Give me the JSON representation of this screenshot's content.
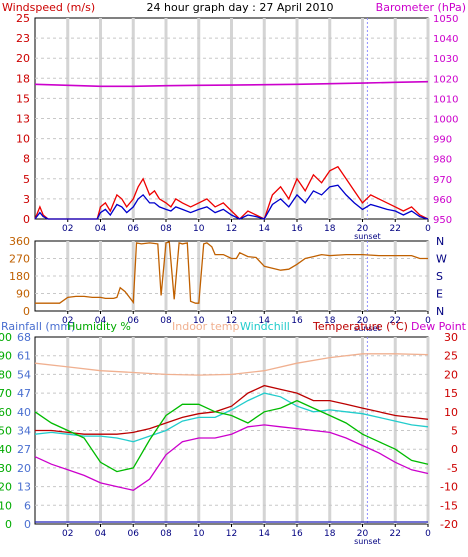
{
  "chart_data": [
    {
      "type": "line",
      "panel": "wind",
      "title": "24 hour graph day : 27 April 2010",
      "left_axis_label": "Windspeed (m/s)",
      "right_axis_label": "Barometer (hPa)",
      "left_ticks": [
        0,
        3,
        5,
        8,
        10,
        13,
        15,
        18,
        20,
        23,
        25
      ],
      "right_ticks": [
        950,
        960,
        970,
        980,
        990,
        1000,
        1010,
        1020,
        1030,
        1040,
        1050
      ],
      "left_range": [
        0,
        25
      ],
      "right_range": [
        950,
        1050
      ],
      "x_ticks": [
        "02",
        "04",
        "06",
        "08",
        "10",
        "12",
        "14",
        "16",
        "18",
        "20",
        "22",
        "0"
      ],
      "x_marker_label": "sunset",
      "x_marker_hour": 20.3,
      "grid": true,
      "series": [
        {
          "name": "gust",
          "axis": "left",
          "color": "#ee0000",
          "x": [
            0,
            0.3,
            0.5,
            0.8,
            1,
            2,
            3,
            3.8,
            4,
            4.3,
            4.6,
            5,
            5.3,
            5.6,
            6,
            6.3,
            6.6,
            7,
            7.3,
            7.6,
            8,
            8.3,
            8.6,
            9,
            9.5,
            10,
            10.5,
            11,
            11.5,
            12,
            12.5,
            13,
            13.5,
            14,
            14.5,
            15,
            15.5,
            16,
            16.5,
            17,
            17.5,
            18,
            18.5,
            19,
            19.5,
            20,
            20.5,
            21,
            21.5,
            22,
            22.5,
            23,
            23.5,
            24
          ],
          "y": [
            0,
            1.5,
            0.5,
            0,
            0,
            0,
            0,
            0,
            1.5,
            2,
            1,
            3,
            2.5,
            1.5,
            2.5,
            4,
            5,
            3,
            3.5,
            2.5,
            2,
            1.5,
            2.5,
            2,
            1.5,
            2,
            2.5,
            1.5,
            2,
            1,
            0,
            1,
            0.5,
            0,
            3,
            4,
            2.5,
            5,
            3.5,
            5.5,
            4.5,
            6,
            6.5,
            5,
            3.5,
            2,
            3,
            2.5,
            2,
            1.5,
            1,
            1.5,
            0.5,
            0
          ]
        },
        {
          "name": "wind",
          "axis": "left",
          "color": "#0000cc",
          "x": [
            0,
            0.3,
            0.5,
            0.8,
            1,
            2,
            3,
            3.8,
            4,
            4.3,
            4.6,
            5,
            5.3,
            5.6,
            6,
            6.3,
            6.6,
            7,
            7.3,
            7.6,
            8,
            8.3,
            8.6,
            9,
            9.5,
            10,
            10.5,
            11,
            11.5,
            12,
            12.5,
            13,
            13.5,
            14,
            14.5,
            15,
            15.5,
            16,
            16.5,
            17,
            17.5,
            18,
            18.5,
            19,
            19.5,
            20,
            20.5,
            21,
            21.5,
            22,
            22.5,
            23,
            23.5,
            24
          ],
          "y": [
            0,
            0.8,
            0.3,
            0,
            0,
            0,
            0,
            0,
            0.8,
            1.2,
            0.5,
            1.8,
            1.5,
            0.8,
            1.5,
            2.5,
            3,
            2,
            2,
            1.5,
            1.2,
            1,
            1.5,
            1.2,
            0.8,
            1.2,
            1.5,
            0.8,
            1.2,
            0.5,
            0,
            0.5,
            0.3,
            0,
            1.8,
            2.5,
            1.5,
            3,
            2,
            3.5,
            3,
            4,
            4.2,
            3,
            2,
            1.2,
            1.8,
            1.5,
            1.2,
            1,
            0.5,
            1,
            0.3,
            0
          ]
        },
        {
          "name": "barometer",
          "axis": "right",
          "color": "#cc00cc",
          "x": [
            0,
            2,
            4,
            6,
            8,
            10,
            12,
            14,
            16,
            18,
            20,
            22,
            24
          ],
          "y": [
            1017,
            1016.5,
            1016,
            1016,
            1016.3,
            1016.5,
            1016.6,
            1016.8,
            1017,
            1017.3,
            1017.6,
            1018,
            1018.3
          ]
        }
      ]
    },
    {
      "type": "line",
      "panel": "direction",
      "left_ticks": [
        0,
        90,
        180,
        270,
        360
      ],
      "right_ticks": [
        "N",
        "E",
        "S",
        "W",
        "N"
      ],
      "left_range": [
        0,
        360
      ],
      "x_ticks": [
        "02",
        "04",
        "06",
        "08",
        "10",
        "12",
        "14",
        "16",
        "18",
        "20",
        "22",
        "0"
      ],
      "x_marker_label": "sunset",
      "x_marker_hour": 20.3,
      "series": [
        {
          "name": "direction",
          "axis": "left",
          "color": "#c06000",
          "x": [
            0,
            0.5,
            1,
            1.5,
            2,
            2.5,
            3,
            3.5,
            4,
            4.3,
            4.5,
            4.8,
            5,
            5.2,
            5.5,
            6,
            6.2,
            6.5,
            7,
            7.5,
            7.7,
            8,
            8.2,
            8.5,
            8.8,
            9,
            9.3,
            9.5,
            9.8,
            10,
            10.3,
            10.5,
            10.8,
            11,
            11.5,
            12,
            12.3,
            12.5,
            13,
            13.5,
            14,
            14.5,
            15,
            15.5,
            16,
            16.5,
            17,
            17.5,
            18,
            19,
            20,
            21,
            22,
            23,
            23.5,
            24
          ],
          "y": [
            40,
            40,
            40,
            40,
            70,
            75,
            75,
            70,
            70,
            65,
            65,
            65,
            70,
            120,
            100,
            45,
            350,
            345,
            350,
            345,
            80,
            350,
            355,
            60,
            350,
            345,
            350,
            50,
            40,
            40,
            345,
            350,
            330,
            290,
            290,
            270,
            270,
            300,
            280,
            275,
            230,
            220,
            210,
            215,
            240,
            270,
            280,
            290,
            285,
            290,
            290,
            285,
            285,
            285,
            270,
            270
          ]
        }
      ]
    },
    {
      "type": "line",
      "panel": "temperature",
      "left_axis_label": "Rainfall (mm)",
      "humidity_label": "Humidity %",
      "indoor_label": "Indoor temp",
      "windchill_label": "Windchill",
      "right_axis_label": "Temperature (°C)",
      "dewpoint_label": "Dew Point",
      "left_ticks": [
        0,
        6,
        13,
        20,
        27,
        34,
        40,
        47,
        54,
        61,
        68
      ],
      "humidity_ticks": [
        0,
        10,
        20,
        30,
        40,
        50,
        60,
        70,
        80,
        90,
        100
      ],
      "right_ticks": [
        -20,
        -15,
        -10,
        -5,
        0,
        5,
        10,
        15,
        20,
        25,
        30
      ],
      "right_range": [
        -20,
        30
      ],
      "x_ticks": [
        "02",
        "04",
        "06",
        "08",
        "10",
        "12",
        "14",
        "16",
        "18",
        "20",
        "22",
        "0"
      ],
      "x_marker_label": "sunset",
      "x_marker_hour": 20.3,
      "series": [
        {
          "name": "indoor",
          "axis": "right",
          "color": "#f0b090",
          "x": [
            0,
            2,
            4,
            6,
            8,
            10,
            12,
            14,
            16,
            18,
            20,
            22,
            24
          ],
          "y": [
            23,
            22,
            21,
            20.5,
            20,
            19.8,
            20,
            21,
            23,
            24.5,
            25.5,
            25.5,
            25.3
          ]
        },
        {
          "name": "temperature",
          "axis": "right",
          "color": "#bb0000",
          "x": [
            0,
            1,
            2,
            3,
            4,
            5,
            6,
            7,
            8,
            9,
            10,
            11,
            12,
            13,
            14,
            15,
            16,
            17,
            18,
            19,
            20,
            21,
            22,
            23,
            24
          ],
          "y": [
            5,
            5,
            4.5,
            4,
            4,
            4,
            4.5,
            5.5,
            7,
            8.5,
            9.5,
            10,
            11.5,
            15,
            17,
            16,
            15,
            13,
            13,
            12,
            11,
            10,
            9,
            8.5,
            8
          ]
        },
        {
          "name": "windchill",
          "axis": "right",
          "color": "#22cccc",
          "x": [
            0,
            1,
            2,
            3,
            4,
            5,
            6,
            7,
            8,
            9,
            10,
            11,
            12,
            13,
            14,
            15,
            16,
            17,
            18,
            19,
            20,
            21,
            22,
            23,
            24
          ],
          "y": [
            4,
            4.5,
            4,
            3.5,
            3.5,
            3,
            2,
            3.5,
            5,
            7.5,
            8.5,
            8.5,
            10.5,
            13,
            15,
            14,
            11.5,
            10,
            10.5,
            10,
            9.5,
            8.5,
            7.5,
            6.5,
            6
          ]
        },
        {
          "name": "humidity",
          "axis": "humidity",
          "color": "#00bb00",
          "x": [
            0,
            1,
            2,
            3,
            4,
            5,
            6,
            7,
            8,
            9,
            10,
            11,
            12,
            13,
            14,
            15,
            16,
            17,
            18,
            19,
            20,
            21,
            22,
            23,
            24
          ],
          "y": [
            60,
            54,
            50,
            46,
            33,
            28,
            30,
            45,
            58,
            64,
            64,
            60,
            58,
            54,
            60,
            62,
            66,
            62,
            58,
            54,
            48,
            44,
            40,
            34,
            32
          ]
        },
        {
          "name": "dewpoint",
          "axis": "right",
          "color": "#cc00cc",
          "x": [
            0,
            1,
            2,
            3,
            4,
            5,
            6,
            7,
            8,
            9,
            10,
            11,
            12,
            13,
            14,
            15,
            16,
            17,
            18,
            19,
            20,
            21,
            22,
            23,
            24
          ],
          "y": [
            -2,
            -4,
            -5.5,
            -7,
            -9,
            -10,
            -11,
            -8,
            -1.5,
            2,
            3,
            3,
            4,
            6,
            6.5,
            6,
            5.5,
            5,
            4.5,
            3,
            1,
            -1,
            -3.5,
            -5.5,
            -6.5
          ]
        },
        {
          "name": "rainfall",
          "axis": "left",
          "color": "#2222bb",
          "x": [
            0,
            24
          ],
          "y": [
            0,
            0
          ]
        }
      ]
    }
  ]
}
